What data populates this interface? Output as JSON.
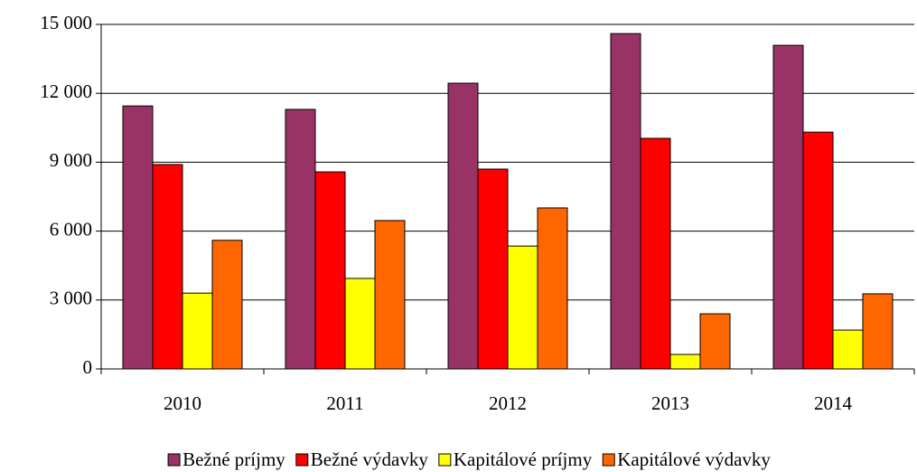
{
  "chart_data": {
    "type": "bar",
    "categories": [
      "2010",
      "2011",
      "2012",
      "2013",
      "2014"
    ],
    "series": [
      {
        "name": "Bežné príjmy",
        "color": "#993366",
        "values": [
          11450,
          11300,
          12440,
          14600,
          14090
        ]
      },
      {
        "name": "Bežné výdavky",
        "color": "#ff0000",
        "values": [
          8900,
          8580,
          8700,
          10040,
          10310
        ]
      },
      {
        "name": "Kapitálové príjmy",
        "color": "#ffff00",
        "values": [
          3300,
          3940,
          5350,
          630,
          1690
        ]
      },
      {
        "name": "Kapitálové výdavky",
        "color": "#ff6600",
        "values": [
          5600,
          6460,
          7010,
          2400,
          3270
        ]
      }
    ],
    "ylim": [
      0,
      15000
    ],
    "yticks": [
      0,
      {
        "value": 3000,
        "label": "3 000"
      },
      {
        "value": 6000,
        "label": "6 000"
      },
      {
        "value": 9000,
        "label": "9 000"
      },
      {
        "value": 12000,
        "label": "12 000"
      },
      {
        "value": 15000,
        "label": "15 000"
      }
    ],
    "grid": true,
    "legend": "bottom"
  }
}
